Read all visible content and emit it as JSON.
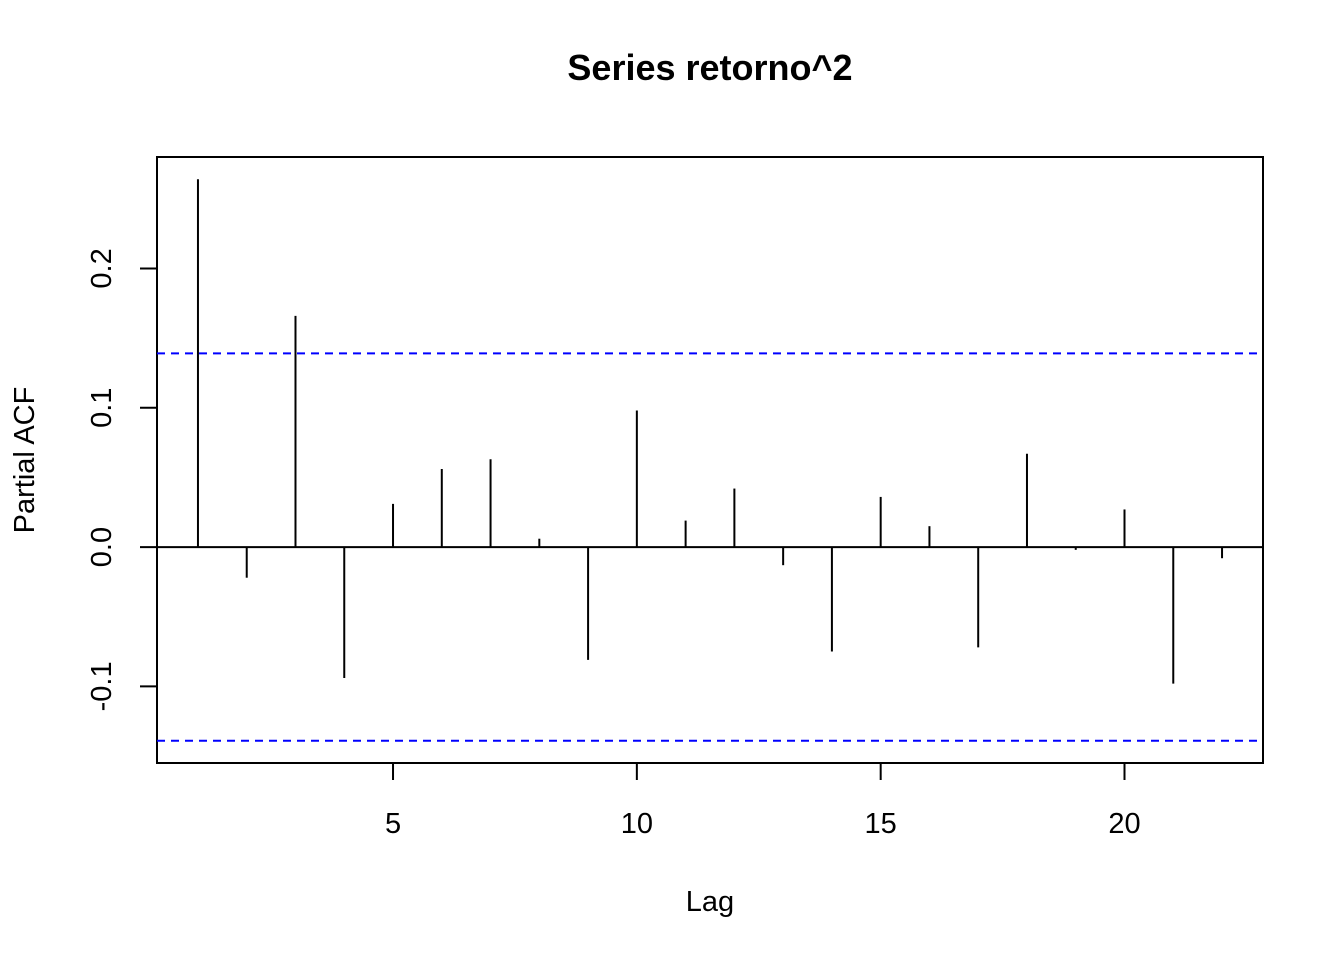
{
  "chart_data": {
    "type": "bar",
    "title": "Series  retorno^2",
    "xlabel": "Lag",
    "ylabel": "Partial ACF",
    "xlim": [
      0.16,
      22.84
    ],
    "ylim": [
      -0.155,
      0.28
    ],
    "x_ticks": [
      5,
      10,
      15,
      20
    ],
    "x_tick_labels": [
      "5",
      "10",
      "15",
      "20"
    ],
    "y_ticks": [
      -0.1,
      0.0,
      0.1,
      0.2
    ],
    "y_tick_labels": [
      "-0.1",
      "0.0",
      "0.1",
      "0.2"
    ],
    "grid": false,
    "lags": [
      1,
      2,
      3,
      4,
      5,
      6,
      7,
      8,
      9,
      10,
      11,
      12,
      13,
      14,
      15,
      16,
      17,
      18,
      19,
      20,
      21,
      22
    ],
    "values": [
      0.264,
      -0.022,
      0.166,
      -0.094,
      0.031,
      0.056,
      0.063,
      0.006,
      -0.081,
      0.098,
      0.019,
      0.042,
      -0.013,
      -0.075,
      0.036,
      0.015,
      -0.072,
      0.067,
      -0.002,
      0.027,
      -0.098,
      -0.008
    ],
    "confidence_bound": 0.139,
    "colors": {
      "bars": "#000000",
      "confidence": "#0000ff",
      "zero_line": "#000000"
    }
  }
}
